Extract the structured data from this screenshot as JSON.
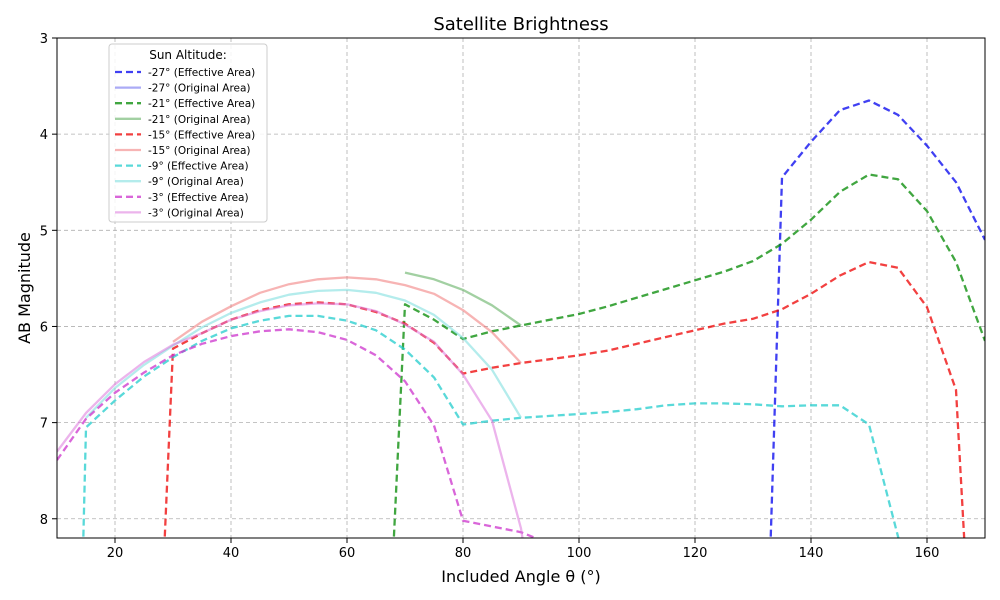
{
  "chart_data": {
    "type": "line",
    "title": "Satellite Brightness",
    "xlabel": "Included Angle θ (°)",
    "ylabel": "AB Magnitude",
    "xlim": [
      10,
      170
    ],
    "ylim": [
      8.2,
      3
    ],
    "y_inverted": true,
    "xticks": [
      20,
      40,
      60,
      80,
      100,
      120,
      140,
      160
    ],
    "yticks": [
      3,
      4,
      5,
      6,
      7,
      8
    ],
    "grid": true,
    "legend": {
      "title": "Sun Altitude:",
      "placement": "upper-left"
    },
    "series": [
      {
        "name": "-27° (Effective Area)",
        "color": "#0000ee",
        "style": "dashed",
        "x": [
          133,
          135,
          140,
          145,
          150,
          155,
          160,
          165,
          170
        ],
        "y": [
          8.3,
          4.45,
          4.08,
          3.75,
          3.65,
          3.8,
          4.12,
          4.5,
          5.1
        ]
      },
      {
        "name": "-27° (Original Area)",
        "color": "#6666ee",
        "style": "solid",
        "x": [],
        "y": []
      },
      {
        "name": "-21° (Effective Area)",
        "color": "#008800",
        "style": "dashed",
        "x": [
          68,
          70,
          75,
          80,
          85,
          90,
          95,
          100,
          105,
          110,
          115,
          120,
          125,
          130,
          135,
          140,
          145,
          150,
          155,
          160,
          165,
          170
        ],
        "y": [
          8.3,
          5.77,
          5.93,
          6.13,
          6.05,
          5.99,
          5.93,
          5.87,
          5.79,
          5.7,
          5.61,
          5.52,
          5.43,
          5.32,
          5.14,
          4.89,
          4.6,
          4.42,
          4.47,
          4.8,
          5.33,
          6.15
        ]
      },
      {
        "name": "-21° (Original Area)",
        "color": "#55aa55",
        "style": "solid",
        "x": [
          70,
          75,
          80,
          85,
          90
        ],
        "y": [
          5.44,
          5.51,
          5.62,
          5.78,
          5.99
        ]
      },
      {
        "name": "-15° (Effective Area)",
        "color": "#ee0000",
        "style": "dashed",
        "x": [
          28.5,
          30,
          35,
          40,
          45,
          50,
          55,
          60,
          65,
          70,
          75,
          80,
          85,
          90,
          95,
          100,
          105,
          110,
          115,
          120,
          125,
          130,
          135,
          140,
          145,
          150,
          155,
          160,
          165,
          166.5
        ],
        "y": [
          8.3,
          6.23,
          6.07,
          5.93,
          5.83,
          5.77,
          5.75,
          5.77,
          5.85,
          5.97,
          6.17,
          6.49,
          6.43,
          6.38,
          6.34,
          6.3,
          6.25,
          6.18,
          6.11,
          6.04,
          5.97,
          5.92,
          5.82,
          5.66,
          5.47,
          5.33,
          5.39,
          5.8,
          6.66,
          8.3
        ]
      },
      {
        "name": "-15° (Original Area)",
        "color": "#f07777",
        "style": "solid",
        "x": [
          30,
          35,
          40,
          45,
          50,
          55,
          60,
          65,
          70,
          75,
          80,
          85,
          90
        ],
        "y": [
          6.16,
          5.95,
          5.79,
          5.65,
          5.56,
          5.51,
          5.49,
          5.51,
          5.57,
          5.66,
          5.83,
          6.06,
          6.38
        ]
      },
      {
        "name": "-9° (Effective Area)",
        "color": "#22cccc",
        "style": "dashed",
        "x": [
          14.5,
          15,
          20,
          25,
          30,
          35,
          40,
          45,
          50,
          55,
          60,
          65,
          70,
          75,
          80,
          85,
          90,
          95,
          100,
          105,
          110,
          115,
          120,
          125,
          130,
          135,
          140,
          145,
          150,
          155.5
        ],
        "y": [
          8.3,
          7.05,
          6.77,
          6.52,
          6.32,
          6.15,
          6.02,
          5.94,
          5.89,
          5.89,
          5.94,
          6.04,
          6.24,
          6.53,
          7.02,
          6.98,
          6.95,
          6.93,
          6.91,
          6.89,
          6.86,
          6.82,
          6.8,
          6.8,
          6.81,
          6.83,
          6.82,
          6.82,
          7.02,
          8.3
        ]
      },
      {
        "name": "-9° (Original Area)",
        "color": "#77dddd",
        "style": "solid",
        "x": [
          15,
          20,
          25,
          30,
          35,
          40,
          45,
          50,
          55,
          60,
          65,
          70,
          75,
          80,
          85,
          90
        ],
        "y": [
          6.95,
          6.64,
          6.4,
          6.2,
          6.01,
          5.86,
          5.75,
          5.67,
          5.63,
          5.62,
          5.65,
          5.73,
          5.88,
          6.12,
          6.45,
          6.95
        ]
      },
      {
        "name": "-3° (Effective Area)",
        "color": "#cc33cc",
        "style": "dashed",
        "x": [
          10,
          15,
          20,
          25,
          30,
          35,
          40,
          45,
          50,
          55,
          60,
          65,
          70,
          75,
          80,
          85,
          90,
          95
        ],
        "y": [
          7.39,
          6.96,
          6.69,
          6.48,
          6.3,
          6.18,
          6.1,
          6.05,
          6.03,
          6.06,
          6.14,
          6.3,
          6.57,
          7.03,
          8.02,
          8.08,
          8.14,
          8.26
        ]
      },
      {
        "name": "-3° (Original Area)",
        "color": "#dd77dd",
        "style": "solid",
        "x": [
          10,
          15,
          20,
          25,
          30,
          35,
          40,
          45,
          50,
          55,
          60,
          65,
          70,
          75,
          80,
          85,
          90,
          90.5
        ],
        "y": [
          7.3,
          6.9,
          6.6,
          6.37,
          6.19,
          6.07,
          5.93,
          5.84,
          5.78,
          5.76,
          5.77,
          5.84,
          5.98,
          6.16,
          6.5,
          6.98,
          8.1,
          8.3
        ]
      }
    ]
  }
}
